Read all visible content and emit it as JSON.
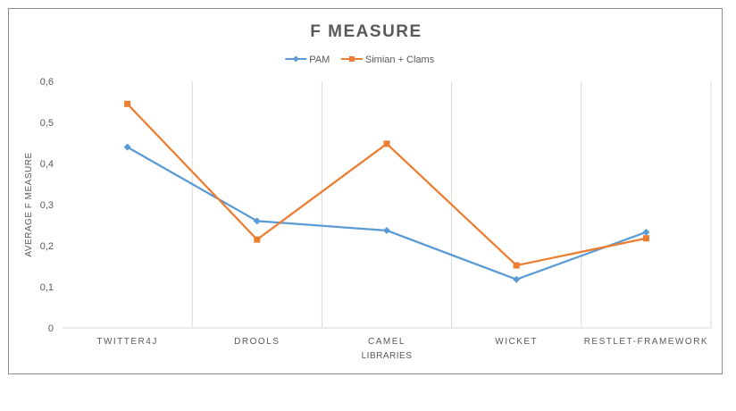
{
  "chart_data": {
    "type": "line",
    "title": "F MEASURE",
    "xlabel": "LIBRARIES",
    "ylabel": "AVERAGE F MEASURE",
    "categories": [
      "TWITTER4J",
      "DROOLS",
      "CAMEL",
      "WICKET",
      "RESTLET-FRAMEWORK"
    ],
    "yticks": [
      "0",
      "0,1",
      "0,2",
      "0,3",
      "0,4",
      "0,5",
      "0,6"
    ],
    "ylim": [
      0,
      0.6
    ],
    "grid": "vertical category separators",
    "legend_position": "top",
    "series": [
      {
        "name": "PAM",
        "values": [
          0.44,
          0.26,
          0.237,
          0.118,
          0.233
        ],
        "color": "#5b9bd5",
        "marker": "diamond"
      },
      {
        "name": "Simian + Clams",
        "values": [
          0.545,
          0.215,
          0.448,
          0.152,
          0.218
        ],
        "color": "#ed7d31",
        "marker": "square"
      }
    ]
  }
}
